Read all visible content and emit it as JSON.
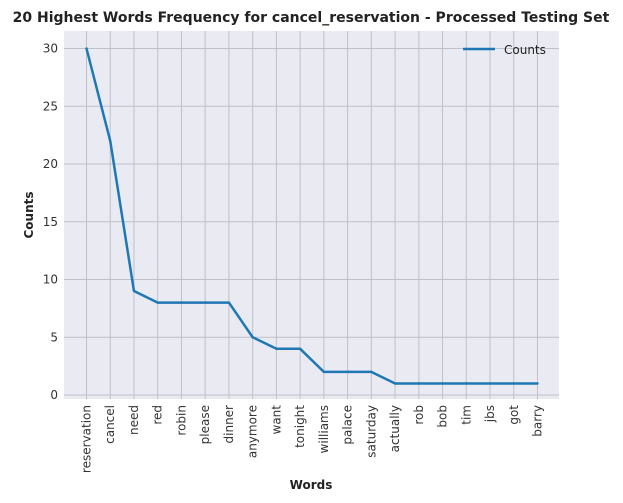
{
  "chart_data": {
    "type": "line",
    "title": "20 Highest Words Frequency for cancel_reservation - Processed Testing Set",
    "xlabel": "Words",
    "ylabel": "Counts",
    "categories": [
      "reservation",
      "cancel",
      "need",
      "red",
      "robin",
      "please",
      "dinner",
      "anymore",
      "want",
      "tonight",
      "williams",
      "palace",
      "saturday",
      "actually",
      "rob",
      "bob",
      "tim",
      "jbs",
      "got",
      "barry"
    ],
    "series": [
      {
        "name": "Counts",
        "values": [
          30,
          22,
          9,
          8,
          8,
          8,
          8,
          5,
          4,
          4,
          2,
          2,
          2,
          1,
          1,
          1,
          1,
          1,
          1,
          1
        ]
      }
    ],
    "ylim": [
      0,
      31
    ],
    "yticks": [
      "0",
      "5",
      "10",
      "15",
      "20",
      "25",
      "30"
    ],
    "grid": true,
    "legend": "top-right",
    "colors": {
      "line": "#1f77b4",
      "plot_bg": "#eaeaf2",
      "grid": "#c0c0c8"
    }
  }
}
